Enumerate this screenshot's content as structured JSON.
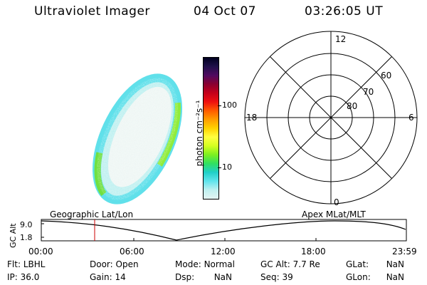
{
  "header": {
    "instrument": "Ultraviolet Imager",
    "date": "04 Oct 07",
    "time": "03:26:05 UT"
  },
  "colorbar": {
    "unit_label": "photon cm⁻²s⁻¹",
    "ticks": [
      "100",
      "10"
    ],
    "colors": [
      "#000020",
      "#20104a",
      "#500a60",
      "#8a0030",
      "#c4001a",
      "#ee1010",
      "#ff5a00",
      "#ff9c00",
      "#ffd200",
      "#ffff40",
      "#d4ff20",
      "#7cf020",
      "#30e060",
      "#20d0c8",
      "#60e4ec",
      "#bff0f0",
      "#e4f4f2"
    ]
  },
  "polar_plot": {
    "mlt_labels": {
      "top": "12",
      "left": "18",
      "right": "6",
      "bottom": "0"
    },
    "lat_labels": [
      "60",
      "70",
      "80"
    ]
  },
  "orbit_panel": {
    "left_title": "Geographic Lat/Lon",
    "right_title": "Apex MLat/MLT",
    "y_axis_label": "GC Alt",
    "y_ticks": [
      "9.0",
      "1.8"
    ],
    "x_ticks": [
      "00:00",
      "06:00",
      "12:00",
      "18:00",
      "23:59"
    ]
  },
  "info": {
    "row1": [
      {
        "label": "Flt:",
        "value": "LBHL"
      },
      {
        "label": "Door:",
        "value": "Open"
      },
      {
        "label": "Mode:",
        "value": "Normal"
      },
      {
        "label": "GC Alt:",
        "value": "7.7 Re"
      },
      {
        "label": "GLat:",
        "value": "NaN"
      }
    ],
    "row2": [
      {
        "label": "IP:",
        "value": "36.0"
      },
      {
        "label": "Gain:",
        "value": "14"
      },
      {
        "label": "Dsp:",
        "value": "NaN"
      },
      {
        "label": "Seq:",
        "value": "39"
      },
      {
        "label": "GLon:",
        "value": "NaN"
      }
    ]
  }
}
